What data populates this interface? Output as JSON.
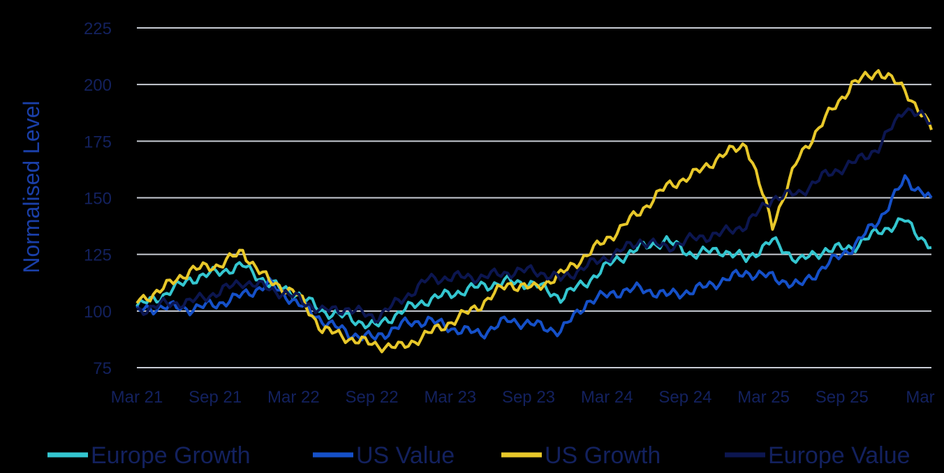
{
  "chart_data": {
    "type": "line",
    "title": "",
    "xlabel": "",
    "ylabel": "Normalised Level",
    "ylim": [
      75,
      225
    ],
    "yticks": [
      75,
      100,
      125,
      150,
      175,
      200,
      225
    ],
    "xticks": [
      "Mar 21",
      "Sep 21",
      "Mar 22",
      "Sep 22",
      "Mar 23",
      "Sep 23",
      "Mar 24",
      "Sep 24",
      "Mar 25",
      "Sep 25",
      "Mar"
    ],
    "grid": true,
    "legend_position": "bottom",
    "x": [
      "Mar 21",
      "May 21",
      "Jul 21",
      "Sep 21",
      "Nov 21",
      "Jan 22",
      "Mar 22",
      "May 22",
      "Jul 22",
      "Sep 22",
      "Nov 22",
      "Jan 23",
      "Mar 23",
      "May 23",
      "Jul 23",
      "Sep 23",
      "Nov 23",
      "Jan 24",
      "Mar 24",
      "May 24",
      "Jul 24",
      "Sep 24",
      "Nov 24",
      "Jan 25",
      "Mar 25",
      "May 25",
      "Jul 25",
      "Sep 25",
      "Nov 25",
      "Jan 26",
      "Mar 26"
    ],
    "series": [
      {
        "name": "Europe Growth",
        "color": "#34c6d0",
        "values": [
          102,
          107,
          114,
          117,
          120,
          112,
          108,
          100,
          97,
          93,
          100,
          105,
          108,
          111,
          113,
          112,
          106,
          113,
          122,
          128,
          131,
          125,
          127,
          123,
          131,
          122,
          127,
          128,
          135,
          140,
          128
        ]
      },
      {
        "name": "US Value",
        "color": "#1550c8",
        "values": [
          100,
          102,
          101,
          103,
          107,
          112,
          104,
          96,
          90,
          88,
          94,
          96,
          92,
          90,
          96,
          94,
          91,
          104,
          108,
          110,
          107,
          109,
          113,
          117,
          115,
          111,
          120,
          128,
          140,
          158,
          150
        ]
      },
      {
        "name": "US Growth",
        "color": "#e8c82a",
        "values": [
          104,
          110,
          118,
          120,
          126,
          113,
          108,
          92,
          88,
          85,
          84,
          90,
          96,
          103,
          112,
          110,
          116,
          125,
          134,
          144,
          155,
          160,
          168,
          174,
          138,
          168,
          185,
          200,
          206,
          198,
          180
        ]
      },
      {
        "name": "Europe Value",
        "color": "#0c1650",
        "values": [
          100,
          103,
          104,
          108,
          113,
          110,
          106,
          100,
          101,
          97,
          105,
          114,
          115,
          115,
          117,
          118,
          114,
          120,
          125,
          131,
          128,
          132,
          134,
          138,
          150,
          152,
          160,
          165,
          172,
          190,
          183
        ]
      }
    ]
  }
}
